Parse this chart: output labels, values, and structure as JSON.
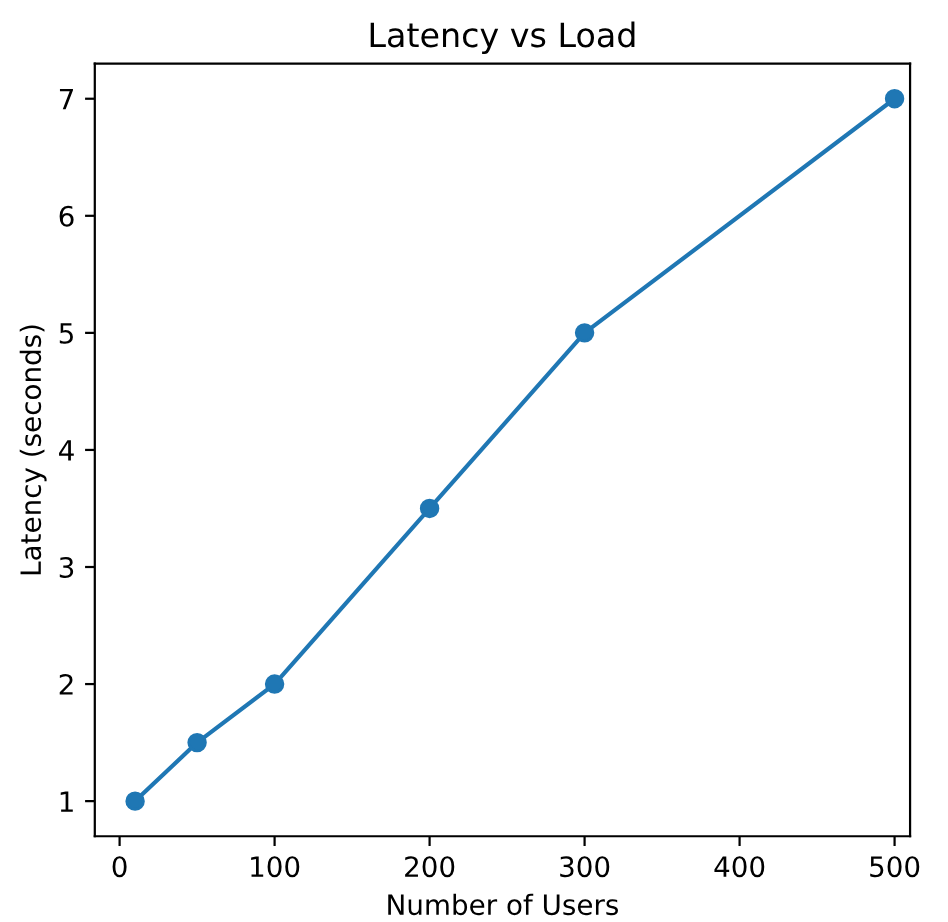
{
  "chart_data": {
    "type": "line",
    "title": "Latency vs Load",
    "xlabel": "Number of Users",
    "ylabel": "Latency (seconds)",
    "x": [
      10,
      50,
      100,
      200,
      300,
      500
    ],
    "series": [
      {
        "color": "#1f77b4",
        "values": [
          1,
          1.5,
          2,
          3.5,
          5,
          7
        ]
      }
    ],
    "xlim": [
      -16,
      510
    ],
    "xticks": [
      0,
      100,
      200,
      300,
      400,
      500
    ],
    "ylim": [
      0.7,
      7.3
    ],
    "yticks": [
      1,
      2,
      3,
      4,
      5,
      6,
      7
    ],
    "marker": "circle",
    "line_style": "solid",
    "grid": false,
    "legend": false
  }
}
